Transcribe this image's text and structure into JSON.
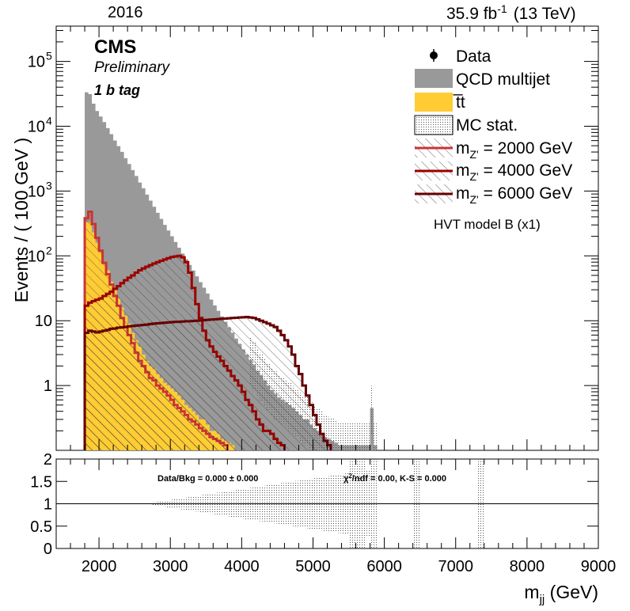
{
  "header": {
    "year": "2016",
    "lumi": "35.9 fb",
    "lumi_exp": "-1",
    "energy": "(13 TeV)"
  },
  "labels": {
    "experiment": "CMS",
    "status": "Preliminary",
    "category": "1 b tag",
    "model": "HVT model B (x1)",
    "ratio_text": "Data/Bkg = 0.000 ± 0.000",
    "chi2_text": "/ndf = 0.00,   K-S = 0.000"
  },
  "colors": {
    "qcd": "#999999",
    "ttbar": "#ffcc33",
    "sig2000": "#cc3333",
    "sig4000": "#990000",
    "sig6000": "#660000",
    "stat": "#888888"
  },
  "chart_data": {
    "type": "bar",
    "xlabel": "m_jj (GeV)",
    "ylabel": "Events / ( 100 GeV )",
    "ratio_ylabel": "",
    "xlim": [
      1400,
      9000
    ],
    "ylim": [
      0.1,
      350000
    ],
    "yscale": "log",
    "ratio_ylim": [
      0,
      2
    ],
    "x_ticks": [
      2000,
      3000,
      4000,
      5000,
      6000,
      7000,
      8000,
      9000
    ],
    "y_ticks": [
      "1",
      "10",
      "10^2",
      "10^3",
      "10^4",
      "10^5"
    ],
    "ratio_ticks": [
      "0",
      "0.5",
      "1",
      "1.5",
      "2"
    ],
    "bin_edges_start": 1800,
    "bin_width": 50,
    "legend": {
      "position": "top-right",
      "entries": [
        {
          "label": "Data",
          "style": "marker"
        },
        {
          "label": "QCD multijet",
          "style": "fill-qcd"
        },
        {
          "label": "t̅t",
          "style": "fill-ttbar"
        },
        {
          "label": "MC stat.",
          "style": "hatch-stat"
        },
        {
          "label": "m_Z' = 2000 GeV",
          "style": "sig2000"
        },
        {
          "label": "m_Z' = 4000 GeV",
          "style": "sig4000"
        },
        {
          "label": "m_Z' = 6000 GeV",
          "style": "sig6000"
        }
      ]
    },
    "series": [
      {
        "name": "QCD multijet",
        "kind": "stacked-fill",
        "values": [
          33000,
          31000,
          22000,
          17000,
          14000,
          11500,
          9300,
          7500,
          6000,
          4900,
          4000,
          3200,
          2600,
          2100,
          1700,
          1350,
          1100,
          880,
          710,
          570,
          460,
          370,
          300,
          245,
          200,
          163,
          133,
          108,
          88,
          72,
          59,
          48,
          39,
          32,
          26,
          21,
          17,
          14,
          11.5,
          9.5,
          7.8,
          6.4,
          5.3,
          4.4,
          3.6,
          3.0,
          2.5,
          2.1,
          1.7,
          1.45,
          1.2,
          1.0,
          0.85,
          0.75,
          0.65,
          0.6,
          0.55,
          0.5,
          0.45,
          0.4,
          0.35,
          0.3,
          0.3,
          0.25,
          0.22,
          0.2,
          0.18,
          0.16,
          0.15,
          0.14,
          0.13,
          0.12,
          0.12,
          0.12,
          0.12,
          0.12,
          0.12,
          0.12,
          0.12,
          0.12,
          0.45,
          0.12
        ]
      },
      {
        "name": "t̅t",
        "kind": "stacked-fill",
        "values": [
          330,
          330,
          230,
          160,
          120,
          80,
          60,
          40,
          30,
          22,
          16,
          12,
          9,
          6.5,
          5,
          4,
          3,
          2.4,
          2,
          1.8,
          1.5,
          1.3,
          1.1,
          1.0,
          0.9,
          0.8,
          0.7,
          0.6,
          0.5,
          0.45,
          0.4,
          0.35,
          0.3,
          0.3,
          0.25,
          0.2,
          0.2,
          0.18,
          0.15,
          0.14,
          0.13,
          0.12
        ]
      },
      {
        "name": "m_Z' = 2000 GeV",
        "kind": "line",
        "values": [
          380,
          480,
          310,
          190,
          120,
          78,
          52,
          36,
          24,
          17,
          11,
          8,
          6,
          4.5,
          3.2,
          2.4,
          2,
          1.6,
          1.3,
          1.2,
          1.0,
          0.9,
          0.8,
          0.7,
          0.6,
          0.5,
          0.45,
          0.4,
          0.35,
          0.3,
          0.28,
          0.25,
          0.22,
          0.2,
          0.18,
          0.16,
          0.15,
          0.14,
          0.13,
          0.12
        ]
      },
      {
        "name": "m_Z' = 4000 GeV",
        "kind": "line",
        "values": [
          17,
          19,
          20,
          21,
          22,
          24,
          26,
          28,
          31,
          34,
          38,
          42,
          46,
          50,
          55,
          60,
          64,
          68,
          72,
          76,
          80,
          84,
          88,
          92,
          96,
          98,
          100,
          95,
          80,
          55,
          32,
          18,
          11,
          7,
          5,
          4,
          3.3,
          2.8,
          2.4,
          2.0,
          1.7,
          1.4,
          1.2,
          1.0,
          0.8,
          0.6,
          0.5,
          0.4,
          0.3,
          0.25,
          0.2,
          0.2,
          0.18,
          0.15,
          0.13,
          0.12
        ]
      },
      {
        "name": "m_Z' = 6000 GeV",
        "kind": "line",
        "values": [
          6.5,
          7,
          6.8,
          6.6,
          6.8,
          7,
          7.2,
          7.5,
          7.6,
          7.8,
          7.9,
          8,
          8.2,
          8.3,
          8.4,
          8.5,
          8.6,
          8.7,
          8.9,
          9,
          9.1,
          9.2,
          9.3,
          9.4,
          9.5,
          9.6,
          9.6,
          9.7,
          9.8,
          9.8,
          9.9,
          10,
          10.1,
          10.2,
          10.3,
          10.4,
          10.5,
          10.6,
          10.7,
          10.8,
          10.9,
          11,
          11.1,
          11.2,
          11.3,
          11.4,
          11.2,
          11,
          10.5,
          10,
          9.5,
          9,
          8.5,
          8,
          7,
          6,
          5,
          4,
          3,
          2,
          1.5,
          1.0,
          0.7,
          0.5,
          0.35,
          0.25,
          0.18,
          0.14,
          0.12
        ]
      },
      {
        "name": "Data",
        "kind": "points",
        "values": []
      }
    ],
    "ratio_line": 1
  }
}
